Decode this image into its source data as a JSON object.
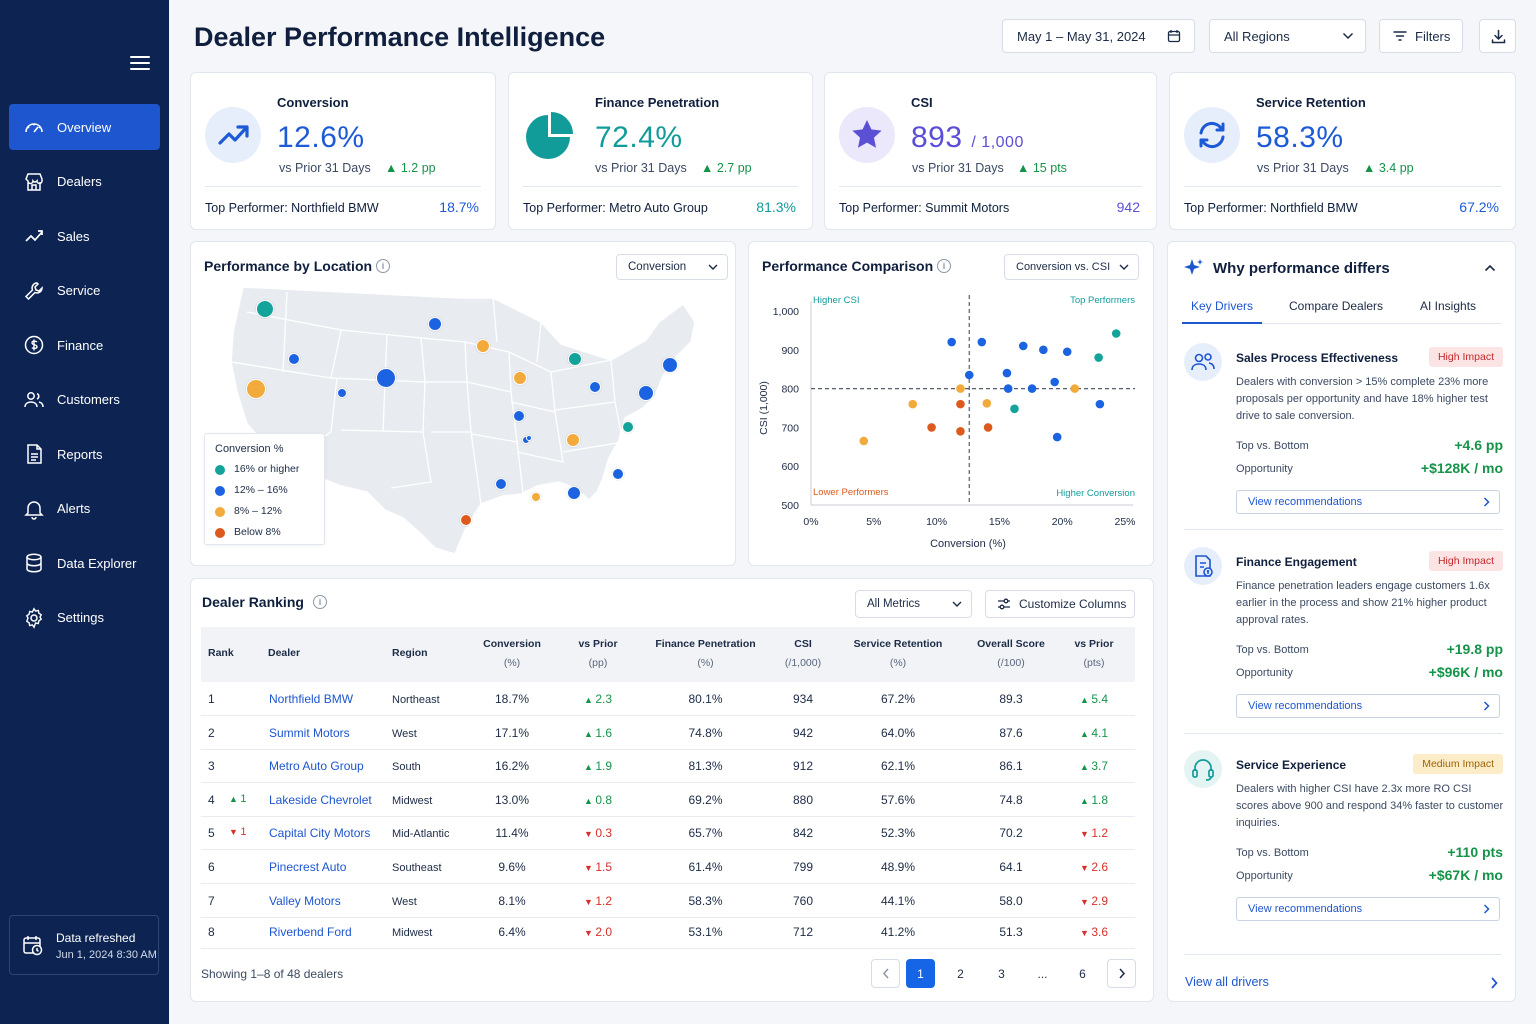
{
  "sidebar": {
    "items": [
      {
        "label": "Overview",
        "icon": "gauge-icon",
        "active": true
      },
      {
        "label": "Dealers",
        "icon": "storefront-icon"
      },
      {
        "label": "Sales",
        "icon": "trend-icon"
      },
      {
        "label": "Service",
        "icon": "wrench-icon"
      },
      {
        "label": "Finance",
        "icon": "dollar-icon"
      },
      {
        "label": "Customers",
        "icon": "users-icon"
      },
      {
        "label": "Reports",
        "icon": "report-icon"
      },
      {
        "label": "Alerts",
        "icon": "bell-icon"
      },
      {
        "label": "Data Explorer",
        "icon": "database-icon"
      },
      {
        "label": "Settings",
        "icon": "gear-icon"
      }
    ],
    "refresh": {
      "label": "Data refreshed",
      "time": "Jun 1, 2024 8:30 AM"
    }
  },
  "header": {
    "title": "Dealer Performance Intelligence",
    "date_range": "May 1 – May 31, 2024",
    "region": "All Regions",
    "filters_label": "Filters"
  },
  "kpis": [
    {
      "label": "Conversion",
      "value": "12.6%",
      "suffix": "",
      "compare": "vs Prior 31 Days",
      "delta": "1.2 pp",
      "top_label": "Top Performer:",
      "top_name": "Northfield BMW",
      "top_value": "18.7%",
      "color": "#1d5ad6"
    },
    {
      "label": "Finance Penetration",
      "value": "72.4%",
      "suffix": "",
      "compare": "vs Prior 31 Days",
      "delta": "2.7 pp",
      "top_label": "Top Performer:",
      "top_name": "Metro Auto Group",
      "top_value": "81.3%",
      "color": "#119c9a"
    },
    {
      "label": "CSI",
      "value": "893",
      "suffix": "/ 1,000",
      "compare": "vs Prior 31 Days",
      "delta": "15 pts",
      "top_label": "Top Performer:",
      "top_name": "Summit Motors",
      "top_value": "942",
      "color": "#5b4fd6"
    },
    {
      "label": "Service Retention",
      "value": "58.3%",
      "suffix": "",
      "compare": "vs Prior 31 Days",
      "delta": "3.4 pp",
      "top_label": "Top Performer:",
      "top_name": "Northfield BMW",
      "top_value": "67.2%",
      "color": "#1d5ad6"
    }
  ],
  "map": {
    "title": "Performance by Location",
    "metric": "Conversion",
    "legend_title": "Conversion %",
    "legend": [
      {
        "label": "16% or higher",
        "color": "#14a39a"
      },
      {
        "label": "12% – 16%",
        "color": "#1b63e0"
      },
      {
        "label": "8% – 12%",
        "color": "#f2aa3b"
      },
      {
        "label": "Below 8%",
        "color": "#dc5a1e"
      }
    ]
  },
  "comparison": {
    "title": "Performance Comparison",
    "metric": "Conversion vs. CSI",
    "quadrants": {
      "tl": "Higher CSI",
      "tr": "Top Performers",
      "bl": "Lower Performers",
      "br": "Higher Conversion"
    }
  },
  "chart_data": {
    "type": "scatter",
    "xlabel": "Conversion (%)",
    "ylabel": "CSI (1,000)",
    "xlim": [
      0,
      25
    ],
    "ylim": [
      500,
      1000
    ],
    "xticks": [
      "0%",
      "5%",
      "10%",
      "15%",
      "20%",
      "25%"
    ],
    "yticks": [
      "500",
      "600",
      "700",
      "800",
      "900",
      "1,000"
    ],
    "reference": {
      "x": 12.6,
      "y": 800
    },
    "points": [
      {
        "x": 11.2,
        "y": 920,
        "c": "#1b63e0"
      },
      {
        "x": 13.6,
        "y": 920,
        "c": "#1b63e0"
      },
      {
        "x": 16.9,
        "y": 910,
        "c": "#1b63e0"
      },
      {
        "x": 18.5,
        "y": 900,
        "c": "#1b63e0"
      },
      {
        "x": 20.4,
        "y": 895,
        "c": "#1b63e0"
      },
      {
        "x": 22.9,
        "y": 880,
        "c": "#14a39a"
      },
      {
        "x": 24.3,
        "y": 942,
        "c": "#14a39a"
      },
      {
        "x": 12.6,
        "y": 835,
        "c": "#1b63e0"
      },
      {
        "x": 15.6,
        "y": 840,
        "c": "#1b63e0"
      },
      {
        "x": 19.4,
        "y": 817,
        "c": "#1b63e0"
      },
      {
        "x": 15.7,
        "y": 800,
        "c": "#1b63e0"
      },
      {
        "x": 17.6,
        "y": 800,
        "c": "#1b63e0"
      },
      {
        "x": 11.9,
        "y": 800,
        "c": "#f2aa3b"
      },
      {
        "x": 21.0,
        "y": 800,
        "c": "#f2aa3b"
      },
      {
        "x": 23.0,
        "y": 760,
        "c": "#1b63e0"
      },
      {
        "x": 8.1,
        "y": 760,
        "c": "#f2aa3b"
      },
      {
        "x": 11.9,
        "y": 760,
        "c": "#dc5a1e"
      },
      {
        "x": 14.0,
        "y": 762,
        "c": "#f2aa3b"
      },
      {
        "x": 16.2,
        "y": 748,
        "c": "#14a39a"
      },
      {
        "x": 9.6,
        "y": 700,
        "c": "#dc5a1e"
      },
      {
        "x": 11.9,
        "y": 690,
        "c": "#dc5a1e"
      },
      {
        "x": 14.1,
        "y": 700,
        "c": "#dc5a1e"
      },
      {
        "x": 19.6,
        "y": 675,
        "c": "#1b63e0"
      },
      {
        "x": 4.2,
        "y": 665,
        "c": "#f2aa3b"
      }
    ]
  },
  "ranking": {
    "title": "Dealer Ranking",
    "metric": "All Metrics",
    "customize_label": "Customize Columns",
    "columns": [
      {
        "label": "Rank",
        "sub": ""
      },
      {
        "label": "Dealer",
        "sub": ""
      },
      {
        "label": "Region",
        "sub": ""
      },
      {
        "label": "Conversion",
        "sub": "(%)"
      },
      {
        "label": "vs Prior",
        "sub": "(pp)"
      },
      {
        "label": "Finance Penetration",
        "sub": "(%)"
      },
      {
        "label": "CSI",
        "sub": "(/1,000)"
      },
      {
        "label": "Service Retention",
        "sub": "(%)"
      },
      {
        "label": "Overall Score",
        "sub": "(/100)"
      },
      {
        "label": "vs Prior",
        "sub": "(pts)"
      }
    ],
    "rows": [
      {
        "rank": "1",
        "move": "",
        "dir": "",
        "dealer": "Northfield BMW",
        "region": "Northeast",
        "conv": "18.7%",
        "conv_d": "2.3",
        "conv_up": true,
        "fin": "80.1%",
        "csi": "934",
        "ret": "67.2%",
        "score": "89.3",
        "score_d": "5.4",
        "score_up": true
      },
      {
        "rank": "2",
        "move": "",
        "dir": "",
        "dealer": "Summit Motors",
        "region": "West",
        "conv": "17.1%",
        "conv_d": "1.6",
        "conv_up": true,
        "fin": "74.8%",
        "csi": "942",
        "ret": "64.0%",
        "score": "87.6",
        "score_d": "4.1",
        "score_up": true
      },
      {
        "rank": "3",
        "move": "",
        "dir": "",
        "dealer": "Metro Auto Group",
        "region": "South",
        "conv": "16.2%",
        "conv_d": "1.9",
        "conv_up": true,
        "fin": "81.3%",
        "csi": "912",
        "ret": "62.1%",
        "score": "86.1",
        "score_d": "3.7",
        "score_up": true
      },
      {
        "rank": "4",
        "move": "1",
        "dir": "up",
        "dealer": "Lakeside Chevrolet",
        "region": "Midwest",
        "conv": "13.0%",
        "conv_d": "0.8",
        "conv_up": true,
        "fin": "69.2%",
        "csi": "880",
        "ret": "57.6%",
        "score": "74.8",
        "score_d": "1.8",
        "score_up": true
      },
      {
        "rank": "5",
        "move": "1",
        "dir": "down",
        "dealer": "Capital City Motors",
        "region": "Mid-Atlantic",
        "conv": "11.4%",
        "conv_d": "0.3",
        "conv_up": false,
        "fin": "65.7%",
        "csi": "842",
        "ret": "52.3%",
        "score": "70.2",
        "score_d": "1.2",
        "score_up": false
      },
      {
        "rank": "6",
        "move": "",
        "dir": "",
        "dealer": "Pinecrest Auto",
        "region": "Southeast",
        "conv": "9.6%",
        "conv_d": "1.5",
        "conv_up": false,
        "fin": "61.4%",
        "csi": "799",
        "ret": "48.9%",
        "score": "64.1",
        "score_d": "2.6",
        "score_up": false
      },
      {
        "rank": "7",
        "move": "",
        "dir": "",
        "dealer": "Valley Motors",
        "region": "West",
        "conv": "8.1%",
        "conv_d": "1.2",
        "conv_up": false,
        "fin": "58.3%",
        "csi": "760",
        "ret": "44.1%",
        "score": "58.0",
        "score_d": "2.9",
        "score_up": false
      },
      {
        "rank": "8",
        "move": "",
        "dir": "",
        "dealer": "Riverbend Ford",
        "region": "Midwest",
        "conv": "6.4%",
        "conv_d": "2.0",
        "conv_up": false,
        "fin": "53.1%",
        "csi": "712",
        "ret": "41.2%",
        "score": "51.3",
        "score_d": "3.6",
        "score_up": false
      }
    ],
    "showing": "Showing 1–8 of 48 dealers",
    "pages": [
      "1",
      "2",
      "3",
      "...",
      "6"
    ]
  },
  "drivers": {
    "title": "Why performance differs",
    "tabs": [
      "Key Drivers",
      "Compare Dealers",
      "AI Insights"
    ],
    "items": [
      {
        "title": "Sales Process Effectiveness",
        "impact": "High Impact",
        "level": "high",
        "desc": "Dealers with conversion > 15% complete 23% more proposals per opportunity and have 18% higher test drive to sale conversion.",
        "k1": "Top vs. Bottom",
        "v1": "+4.6 pp",
        "k2": "Opportunity",
        "v2": "+$128K / mo",
        "cta": "View recommendations"
      },
      {
        "title": "Finance Engagement",
        "impact": "High Impact",
        "level": "high",
        "desc": "Finance penetration leaders engage customers 1.6x earlier in the process and show 21% higher product approval rates.",
        "k1": "Top vs. Bottom",
        "v1": "+19.8 pp",
        "k2": "Opportunity",
        "v2": "+$96K / mo",
        "cta": "View recommendations"
      },
      {
        "title": "Service Experience",
        "impact": "Medium Impact",
        "level": "medium",
        "desc": "Dealers with higher CSI have 2.3x more RO CSI scores above 900 and respond 34% faster to customer inquiries.",
        "k1": "Top vs. Bottom",
        "v1": "+110 pts",
        "k2": "Opportunity",
        "v2": "+$67K / mo",
        "cta": "View recommendations"
      }
    ],
    "view_all": "View all drivers"
  }
}
